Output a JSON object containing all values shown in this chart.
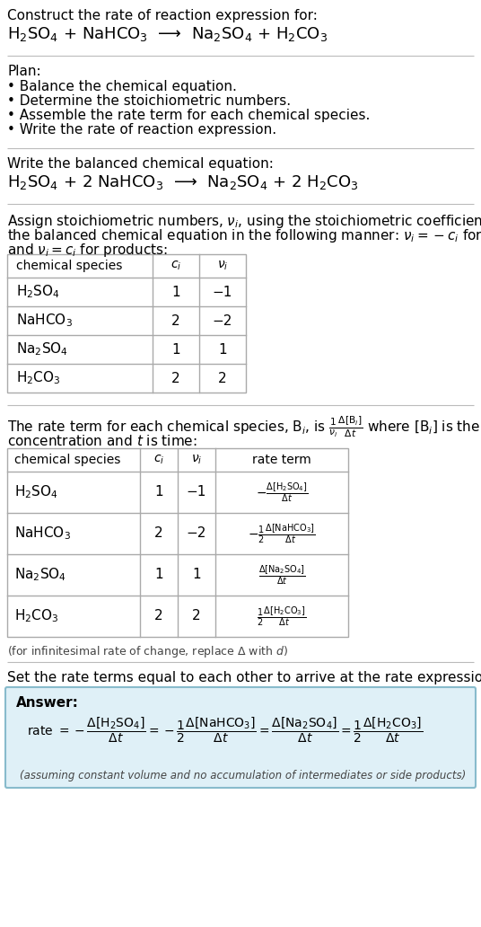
{
  "bg_color": "#ffffff",
  "text_color": "#000000",
  "title_line1": "Construct the rate of reaction expression for:",
  "title_eq": "H$_2$SO$_4$ + NaHCO$_3$  ⟶  Na$_2$SO$_4$ + H$_2$CO$_3$",
  "plan_header": "Plan:",
  "plan_items": [
    "• Balance the chemical equation.",
    "• Determine the stoichiometric numbers.",
    "• Assemble the rate term for each chemical species.",
    "• Write the rate of reaction expression."
  ],
  "balanced_header": "Write the balanced chemical equation:",
  "balanced_eq": "H$_2$SO$_4$ + 2 NaHCO$_3$  ⟶  Na$_2$SO$_4$ + 2 H$_2$CO$_3$",
  "assign_text1": "Assign stoichiometric numbers, $\\nu_i$, using the stoichiometric coefficients, $c_i$, from",
  "assign_text2": "the balanced chemical equation in the following manner: $\\nu_i = -c_i$ for reactants",
  "assign_text3": "and $\\nu_i = c_i$ for products:",
  "table1_headers": [
    "chemical species",
    "$c_i$",
    "$\\nu_i$"
  ],
  "table1_rows": [
    [
      "H$_2$SO$_4$",
      "1",
      "−1"
    ],
    [
      "NaHCO$_3$",
      "2",
      "−2"
    ],
    [
      "Na$_2$SO$_4$",
      "1",
      "1"
    ],
    [
      "H$_2$CO$_3$",
      "2",
      "2"
    ]
  ],
  "rate_text1": "The rate term for each chemical species, B$_i$, is $\\frac{1}{\\nu_i}\\frac{\\Delta[\\mathrm{B}_i]}{\\Delta t}$ where [B$_i$] is the amount",
  "rate_text2": "concentration and $t$ is time:",
  "table2_headers": [
    "chemical species",
    "$c_i$",
    "$\\nu_i$",
    "rate term"
  ],
  "table2_rows": [
    [
      "H$_2$SO$_4$",
      "1",
      "−1",
      "$-\\frac{\\Delta[\\mathrm{H_2SO_4}]}{\\Delta t}$"
    ],
    [
      "NaHCO$_3$",
      "2",
      "−2",
      "$-\\frac{1}{2}\\frac{\\Delta[\\mathrm{NaHCO_3}]}{\\Delta t}$"
    ],
    [
      "Na$_2$SO$_4$",
      "1",
      "1",
      "$\\frac{\\Delta[\\mathrm{Na_2SO_4}]}{\\Delta t}$"
    ],
    [
      "H$_2$CO$_3$",
      "2",
      "2",
      "$\\frac{1}{2}\\frac{\\Delta[\\mathrm{H_2CO_3}]}{\\Delta t}$"
    ]
  ],
  "infinitesimal_note": "(for infinitesimal rate of change, replace Δ with $d$)",
  "set_rate_text": "Set the rate terms equal to each other to arrive at the rate expression:",
  "answer_box_color": "#dff0f7",
  "answer_box_border": "#88bbcc",
  "answer_label": "Answer:",
  "assumption_note": "(assuming constant volume and no accumulation of intermediates or side products)"
}
